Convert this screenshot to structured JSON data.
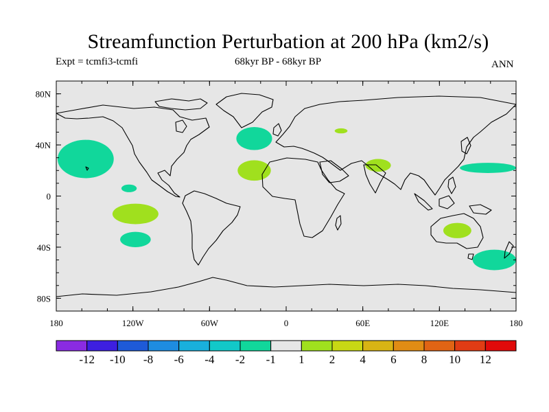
{
  "title": "Streamfunction Perturbation at 200 hPa (km2/s)",
  "subtitle_left": "Expt = tcmfi3-tcmfi",
  "subtitle_center": "68kyr BP - 68kyr BP",
  "subtitle_right": "ANN",
  "map": {
    "projection": "cylindrical-equidistant",
    "lon_range": [
      -180,
      180
    ],
    "lat_range": [
      -90,
      90
    ],
    "background_color": "#e6e6e6",
    "lat_ticks": [
      {
        "lat": 80,
        "label": "80N"
      },
      {
        "lat": 40,
        "label": "40N"
      },
      {
        "lat": 0,
        "label": "0"
      },
      {
        "lat": -40,
        "label": "40S"
      },
      {
        "lat": -80,
        "label": "80S"
      }
    ],
    "lon_ticks": [
      {
        "lon": -180,
        "label": "180"
      },
      {
        "lon": -120,
        "label": "120W"
      },
      {
        "lon": -60,
        "label": "60W"
      },
      {
        "lon": 0,
        "label": "0"
      },
      {
        "lon": 60,
        "label": "60E"
      },
      {
        "lon": 120,
        "label": "120E"
      },
      {
        "lon": 180,
        "label": "180"
      }
    ]
  },
  "anomalies": [
    {
      "name": "north-atlantic-negative",
      "lon": -25,
      "lat": 45,
      "rlon": 14,
      "rlat": 9,
      "sign": "negative"
    },
    {
      "name": "north-pacific-negative",
      "lon": -157,
      "lat": 29,
      "rlon": 22,
      "rlat": 15,
      "sign": "negative"
    },
    {
      "name": "central-pacific-small-negative",
      "lon": -123,
      "lat": 6,
      "rlon": 6,
      "rlat": 3,
      "sign": "negative"
    },
    {
      "name": "south-pacific-negative",
      "lon": -118,
      "lat": -34,
      "rlon": 12,
      "rlat": 6,
      "sign": "negative"
    },
    {
      "name": "west-pacific-negative",
      "lon": 158,
      "lat": 22,
      "rlon": 22,
      "rlat": 4,
      "sign": "negative"
    },
    {
      "name": "southwest-pacific-negative",
      "lon": 163,
      "lat": -50,
      "rlon": 17,
      "rlat": 8,
      "sign": "negative"
    },
    {
      "name": "north-africa-positive",
      "lon": -25,
      "lat": 20,
      "rlon": 13,
      "rlat": 8,
      "sign": "positive"
    },
    {
      "name": "eastern-pacific-positive",
      "lon": -118,
      "lat": -14,
      "rlon": 18,
      "rlat": 8,
      "sign": "positive"
    },
    {
      "name": "south-asia-positive",
      "lon": 72,
      "lat": 24,
      "rlon": 10,
      "rlat": 5,
      "sign": "positive"
    },
    {
      "name": "caspian-positive",
      "lon": 43,
      "lat": 51,
      "rlon": 5,
      "rlat": 2,
      "sign": "positive"
    },
    {
      "name": "australia-positive",
      "lon": 134,
      "lat": -27,
      "rlon": 11,
      "rlat": 6,
      "sign": "positive"
    }
  ],
  "colorbar": {
    "colors": [
      "#8a2be2",
      "#3d1fe0",
      "#1e5ad8",
      "#1e8ce0",
      "#19b0dc",
      "#12c8c8",
      "#11d79b",
      "#e6e6e6",
      "#a0e01e",
      "#c8d814",
      "#d8b414",
      "#e08c14",
      "#e06414",
      "#e03c14",
      "#e00a0a"
    ],
    "labels": [
      "-12",
      "-10",
      "-8",
      "-6",
      "-4",
      "-2",
      "-1",
      "1",
      "2",
      "4",
      "6",
      "8",
      "10",
      "12"
    ],
    "negative_fill": "#11d79b",
    "positive_fill": "#a0e01e"
  }
}
